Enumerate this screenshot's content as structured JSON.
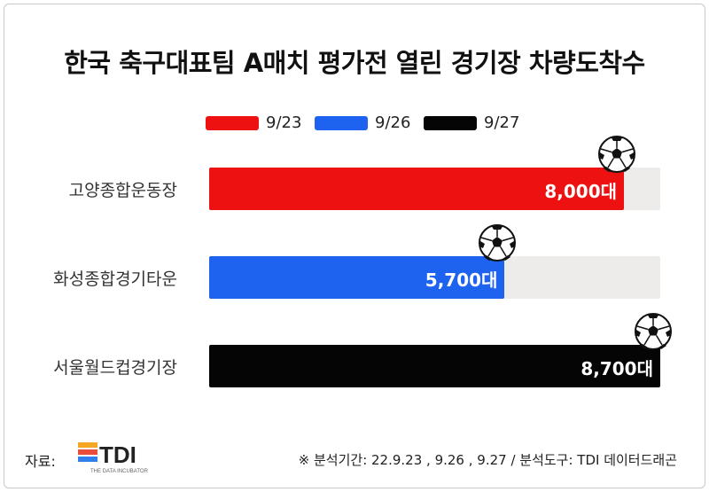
{
  "title": "한국 축구대표팀 A매치 평가전 열린 경기장 차량도착수",
  "chart_data": {
    "type": "bar",
    "orientation": "horizontal",
    "categories": [
      "고양종합운동장",
      "화성종합경기타운",
      "서울월드컵경기장"
    ],
    "values": [
      8000,
      5700,
      8700
    ],
    "value_labels": [
      "8,000대",
      "5,700대",
      "8,700대"
    ],
    "bar_dates": [
      "9/23",
      "9/26",
      "9/27"
    ],
    "xlim": [
      0,
      8700
    ],
    "legend": {
      "placement": "top-center",
      "items": [
        {
          "label": "9/23",
          "color": "#ee1111"
        },
        {
          "label": "9/26",
          "color": "#1d63f0"
        },
        {
          "label": "9/27",
          "color": "#050505"
        }
      ]
    },
    "grid": false
  },
  "footer": {
    "source_label": "자료:",
    "logo_text": "TDI",
    "logo_subtext": "THE DATA INCUBATOR",
    "note": "※ 분석기간: 22.9.23 , 9.26 , 9.27 / 분석도구: TDI 데이터드래곤"
  },
  "icons": {
    "marker": "soccer-ball-icon"
  }
}
